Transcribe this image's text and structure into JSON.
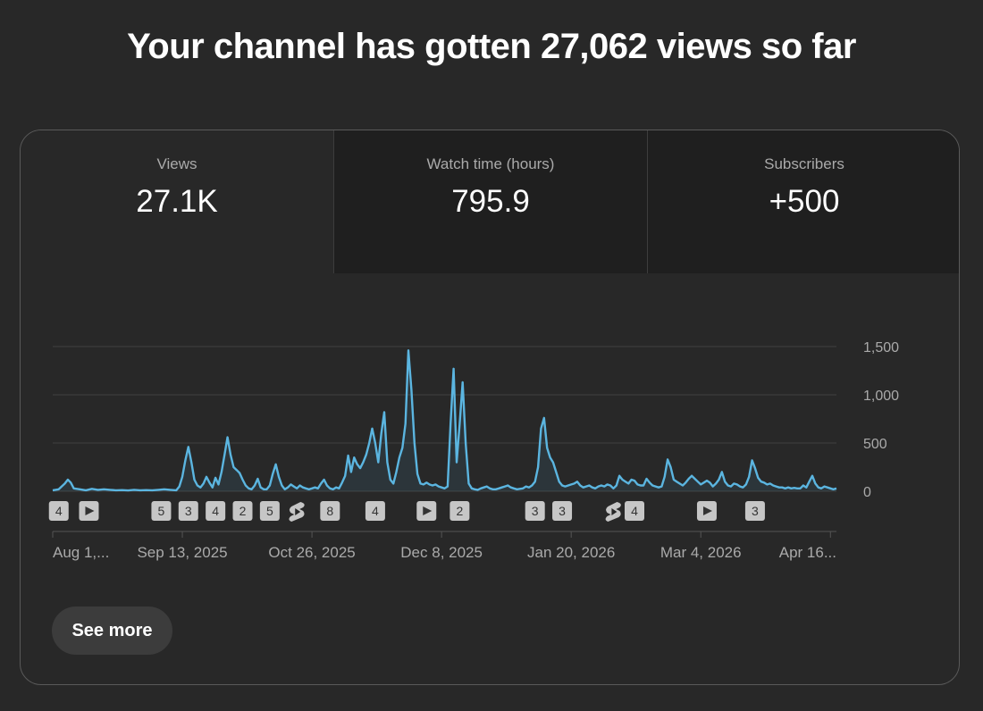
{
  "headline": "Your channel has gotten 27,062 views so far",
  "tabs": [
    {
      "label": "Views",
      "value": "27.1K"
    },
    {
      "label": "Watch time (hours)",
      "value": "795.9"
    },
    {
      "label": "Subscribers",
      "value": "+500"
    }
  ],
  "see_more_label": "See more",
  "colors": {
    "line": "#5bb5e0",
    "grid": "#3f3f3f",
    "axis_text": "#aaaaaa",
    "badge_bg": "#c6c6c6",
    "badge_text": "#333333"
  },
  "chart_data": {
    "type": "area",
    "title": "Views",
    "ylim": [
      0,
      1500
    ],
    "y_ticks": [
      0,
      500,
      1000,
      1500
    ],
    "y_tick_labels": [
      "0",
      "500",
      "1,000",
      "1,500"
    ],
    "x_tick_labels": [
      "Aug 1,...",
      "Sep 13, 2025",
      "Oct 26, 2025",
      "Dec 8, 2025",
      "Jan 20, 2026",
      "Mar 4, 2026",
      "Apr 16..."
    ],
    "x_tick_days": [
      0,
      43,
      86,
      129,
      172,
      215,
      258
    ],
    "day_count": 261,
    "series": [
      {
        "name": "Views",
        "points": [
          [
            0,
            10
          ],
          [
            2,
            20
          ],
          [
            4,
            80
          ],
          [
            5,
            120
          ],
          [
            6,
            90
          ],
          [
            7,
            30
          ],
          [
            9,
            20
          ],
          [
            11,
            10
          ],
          [
            13,
            25
          ],
          [
            15,
            15
          ],
          [
            17,
            20
          ],
          [
            19,
            15
          ],
          [
            21,
            10
          ],
          [
            23,
            12
          ],
          [
            25,
            8
          ],
          [
            27,
            15
          ],
          [
            29,
            10
          ],
          [
            31,
            12
          ],
          [
            33,
            10
          ],
          [
            35,
            15
          ],
          [
            37,
            20
          ],
          [
            39,
            15
          ],
          [
            41,
            10
          ],
          [
            42,
            50
          ],
          [
            43,
            150
          ],
          [
            44,
            320
          ],
          [
            45,
            460
          ],
          [
            46,
            300
          ],
          [
            47,
            120
          ],
          [
            48,
            60
          ],
          [
            49,
            40
          ],
          [
            50,
            80
          ],
          [
            51,
            150
          ],
          [
            52,
            90
          ],
          [
            53,
            40
          ],
          [
            54,
            140
          ],
          [
            55,
            70
          ],
          [
            56,
            200
          ],
          [
            57,
            380
          ],
          [
            58,
            560
          ],
          [
            59,
            380
          ],
          [
            60,
            250
          ],
          [
            61,
            220
          ],
          [
            62,
            190
          ],
          [
            63,
            120
          ],
          [
            64,
            60
          ],
          [
            65,
            30
          ],
          [
            66,
            20
          ],
          [
            67,
            60
          ],
          [
            68,
            130
          ],
          [
            69,
            40
          ],
          [
            70,
            20
          ],
          [
            71,
            20
          ],
          [
            72,
            60
          ],
          [
            73,
            180
          ],
          [
            74,
            280
          ],
          [
            75,
            150
          ],
          [
            76,
            60
          ],
          [
            77,
            20
          ],
          [
            78,
            40
          ],
          [
            79,
            70
          ],
          [
            80,
            50
          ],
          [
            81,
            30
          ],
          [
            82,
            60
          ],
          [
            83,
            40
          ],
          [
            84,
            30
          ],
          [
            85,
            20
          ],
          [
            86,
            30
          ],
          [
            87,
            40
          ],
          [
            88,
            30
          ],
          [
            89,
            80
          ],
          [
            90,
            120
          ],
          [
            91,
            60
          ],
          [
            92,
            30
          ],
          [
            93,
            20
          ],
          [
            94,
            40
          ],
          [
            95,
            30
          ],
          [
            96,
            90
          ],
          [
            97,
            160
          ],
          [
            98,
            370
          ],
          [
            99,
            200
          ],
          [
            100,
            350
          ],
          [
            101,
            280
          ],
          [
            102,
            240
          ],
          [
            103,
            300
          ],
          [
            104,
            380
          ],
          [
            105,
            500
          ],
          [
            106,
            650
          ],
          [
            107,
            500
          ],
          [
            108,
            300
          ],
          [
            109,
            600
          ],
          [
            110,
            820
          ],
          [
            111,
            300
          ],
          [
            112,
            120
          ],
          [
            113,
            80
          ],
          [
            114,
            200
          ],
          [
            115,
            350
          ],
          [
            116,
            450
          ],
          [
            117,
            700
          ],
          [
            118,
            1460
          ],
          [
            119,
            1050
          ],
          [
            120,
            500
          ],
          [
            121,
            180
          ],
          [
            122,
            80
          ],
          [
            123,
            70
          ],
          [
            124,
            90
          ],
          [
            125,
            70
          ],
          [
            126,
            60
          ],
          [
            127,
            70
          ],
          [
            128,
            50
          ],
          [
            129,
            40
          ],
          [
            130,
            30
          ],
          [
            131,
            50
          ],
          [
            132,
            700
          ],
          [
            133,
            1270
          ],
          [
            134,
            300
          ],
          [
            135,
            700
          ],
          [
            136,
            1130
          ],
          [
            137,
            500
          ],
          [
            138,
            80
          ],
          [
            139,
            30
          ],
          [
            140,
            20
          ],
          [
            141,
            15
          ],
          [
            142,
            30
          ],
          [
            143,
            40
          ],
          [
            144,
            50
          ],
          [
            145,
            30
          ],
          [
            146,
            20
          ],
          [
            147,
            20
          ],
          [
            148,
            30
          ],
          [
            149,
            40
          ],
          [
            150,
            50
          ],
          [
            151,
            60
          ],
          [
            152,
            40
          ],
          [
            153,
            30
          ],
          [
            154,
            20
          ],
          [
            155,
            25
          ],
          [
            156,
            30
          ],
          [
            157,
            50
          ],
          [
            158,
            40
          ],
          [
            159,
            60
          ],
          [
            160,
            100
          ],
          [
            161,
            250
          ],
          [
            162,
            650
          ],
          [
            163,
            760
          ],
          [
            164,
            450
          ],
          [
            165,
            350
          ],
          [
            166,
            300
          ],
          [
            167,
            200
          ],
          [
            168,
            100
          ],
          [
            169,
            60
          ],
          [
            170,
            50
          ],
          [
            171,
            60
          ],
          [
            172,
            70
          ],
          [
            173,
            80
          ],
          [
            174,
            100
          ],
          [
            175,
            60
          ],
          [
            176,
            40
          ],
          [
            177,
            50
          ],
          [
            178,
            60
          ],
          [
            179,
            40
          ],
          [
            180,
            30
          ],
          [
            181,
            50
          ],
          [
            182,
            60
          ],
          [
            183,
            50
          ],
          [
            184,
            70
          ],
          [
            185,
            60
          ],
          [
            186,
            30
          ],
          [
            187,
            60
          ],
          [
            188,
            160
          ],
          [
            189,
            120
          ],
          [
            190,
            100
          ],
          [
            191,
            80
          ],
          [
            192,
            120
          ],
          [
            193,
            110
          ],
          [
            194,
            70
          ],
          [
            195,
            60
          ],
          [
            196,
            60
          ],
          [
            197,
            130
          ],
          [
            198,
            90
          ],
          [
            199,
            60
          ],
          [
            200,
            50
          ],
          [
            201,
            40
          ],
          [
            202,
            50
          ],
          [
            203,
            150
          ],
          [
            204,
            330
          ],
          [
            205,
            250
          ],
          [
            206,
            120
          ],
          [
            207,
            100
          ],
          [
            208,
            80
          ],
          [
            209,
            60
          ],
          [
            210,
            90
          ],
          [
            211,
            130
          ],
          [
            212,
            160
          ],
          [
            213,
            130
          ],
          [
            214,
            100
          ],
          [
            215,
            70
          ],
          [
            216,
            90
          ],
          [
            217,
            110
          ],
          [
            218,
            90
          ],
          [
            219,
            50
          ],
          [
            220,
            80
          ],
          [
            221,
            120
          ],
          [
            222,
            200
          ],
          [
            223,
            100
          ],
          [
            224,
            60
          ],
          [
            225,
            50
          ],
          [
            226,
            80
          ],
          [
            227,
            70
          ],
          [
            228,
            50
          ],
          [
            229,
            40
          ],
          [
            230,
            70
          ],
          [
            231,
            150
          ],
          [
            232,
            320
          ],
          [
            233,
            240
          ],
          [
            234,
            140
          ],
          [
            235,
            100
          ],
          [
            236,
            90
          ],
          [
            237,
            70
          ],
          [
            238,
            80
          ],
          [
            239,
            60
          ],
          [
            240,
            50
          ],
          [
            241,
            40
          ],
          [
            242,
            40
          ],
          [
            243,
            30
          ],
          [
            244,
            40
          ],
          [
            245,
            30
          ],
          [
            246,
            35
          ],
          [
            247,
            30
          ],
          [
            248,
            30
          ],
          [
            249,
            60
          ],
          [
            250,
            40
          ],
          [
            251,
            100
          ],
          [
            252,
            160
          ],
          [
            253,
            80
          ],
          [
            254,
            40
          ],
          [
            255,
            30
          ],
          [
            256,
            50
          ],
          [
            257,
            40
          ],
          [
            258,
            30
          ],
          [
            259,
            20
          ],
          [
            260,
            30
          ]
        ]
      }
    ],
    "markers": [
      {
        "day": 2,
        "kind": "count",
        "text": "4"
      },
      {
        "day": 12,
        "kind": "play",
        "text": ""
      },
      {
        "day": 36,
        "kind": "count",
        "text": "5"
      },
      {
        "day": 45,
        "kind": "count",
        "text": "3"
      },
      {
        "day": 54,
        "kind": "count",
        "text": "4"
      },
      {
        "day": 63,
        "kind": "count",
        "text": "2"
      },
      {
        "day": 72,
        "kind": "count",
        "text": "5"
      },
      {
        "day": 81,
        "kind": "shorts",
        "text": ""
      },
      {
        "day": 92,
        "kind": "count",
        "text": "8"
      },
      {
        "day": 107,
        "kind": "count",
        "text": "4"
      },
      {
        "day": 124,
        "kind": "play",
        "text": ""
      },
      {
        "day": 135,
        "kind": "count",
        "text": "2"
      },
      {
        "day": 160,
        "kind": "count",
        "text": "3"
      },
      {
        "day": 169,
        "kind": "count",
        "text": "3"
      },
      {
        "day": 186,
        "kind": "shorts",
        "text": ""
      },
      {
        "day": 193,
        "kind": "count",
        "text": "4"
      },
      {
        "day": 217,
        "kind": "play",
        "text": ""
      },
      {
        "day": 233,
        "kind": "count",
        "text": "3"
      }
    ]
  }
}
